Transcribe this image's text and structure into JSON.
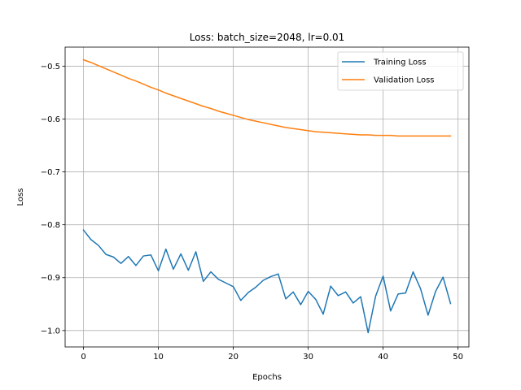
{
  "chart_data": {
    "type": "line",
    "title": "Loss: batch_size=2048, lr=0.01",
    "xlabel": "Epochs",
    "ylabel": "Loss",
    "xlim": [
      -2.45,
      51.45
    ],
    "ylim": [
      -1.031,
      -0.464
    ],
    "grid": true,
    "legend_position": "upper right",
    "x_ticks": [
      0,
      10,
      20,
      30,
      40,
      50
    ],
    "x_tick_labels": [
      "0",
      "10",
      "20",
      "30",
      "40",
      "50"
    ],
    "y_ticks": [
      -1.0,
      -0.9,
      -0.8,
      -0.7,
      -0.6,
      -0.5
    ],
    "y_tick_labels": [
      "−1.0",
      "−0.9",
      "−0.8",
      "−0.7",
      "−0.6",
      "−0.5"
    ],
    "x": [
      0,
      1,
      2,
      3,
      4,
      5,
      6,
      7,
      8,
      9,
      10,
      11,
      12,
      13,
      14,
      15,
      16,
      17,
      18,
      19,
      20,
      21,
      22,
      23,
      24,
      25,
      26,
      27,
      28,
      29,
      30,
      31,
      32,
      33,
      34,
      35,
      36,
      37,
      38,
      39,
      40,
      41,
      42,
      43,
      44,
      45,
      46,
      47,
      48,
      49
    ],
    "series": [
      {
        "name": "Training Loss",
        "color": "#1f77b4",
        "values": [
          -0.81,
          -0.828,
          -0.839,
          -0.856,
          -0.861,
          -0.873,
          -0.86,
          -0.877,
          -0.859,
          -0.857,
          -0.887,
          -0.846,
          -0.884,
          -0.855,
          -0.886,
          -0.851,
          -0.907,
          -0.889,
          -0.903,
          -0.91,
          -0.917,
          -0.943,
          -0.928,
          -0.918,
          -0.905,
          -0.898,
          -0.893,
          -0.94,
          -0.927,
          -0.951,
          -0.926,
          -0.941,
          -0.969,
          -0.916,
          -0.934,
          -0.927,
          -0.948,
          -0.936,
          -1.004,
          -0.935,
          -0.897,
          -0.963,
          -0.931,
          -0.929,
          -0.889,
          -0.921,
          -0.971,
          -0.926,
          -0.899,
          -0.949
        ]
      },
      {
        "name": "Validation Loss",
        "color": "#ff7f0e",
        "values": [
          -0.488,
          -0.493,
          -0.499,
          -0.505,
          -0.511,
          -0.517,
          -0.523,
          -0.528,
          -0.534,
          -0.54,
          -0.545,
          -0.551,
          -0.556,
          -0.561,
          -0.566,
          -0.571,
          -0.576,
          -0.58,
          -0.585,
          -0.589,
          -0.593,
          -0.597,
          -0.601,
          -0.604,
          -0.607,
          -0.61,
          -0.613,
          -0.616,
          -0.618,
          -0.62,
          -0.622,
          -0.624,
          -0.625,
          -0.626,
          -0.627,
          -0.628,
          -0.629,
          -0.63,
          -0.63,
          -0.631,
          -0.631,
          -0.631,
          -0.632,
          -0.632,
          -0.632,
          -0.632,
          -0.632,
          -0.632,
          -0.632,
          -0.632
        ]
      }
    ]
  }
}
